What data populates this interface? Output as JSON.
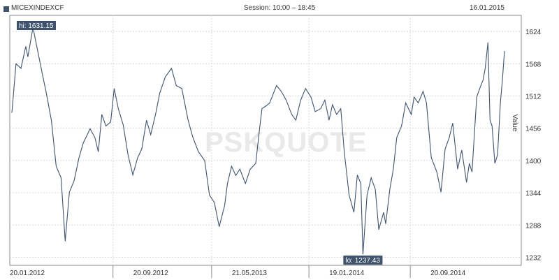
{
  "header": {
    "symbol": "MICEXINDEXCF",
    "session": "Session: 10:00 – 18:45",
    "date": "16.01.2015"
  },
  "watermark": "PSKQUOTE",
  "colors": {
    "line": "#3f536d",
    "grid": "#d8d8d8",
    "badge": "#3f536d"
  },
  "chart_data": {
    "type": "line",
    "ylabel": "Value",
    "yticks": [
      1232,
      1288,
      1344,
      1400,
      1456,
      1512,
      1568,
      1624
    ],
    "ylim": [
      1218,
      1652
    ],
    "xlim": [
      0,
      1
    ],
    "xtick_labels": [
      "20.01.2012",
      "20.09.2012",
      "21.05.2013",
      "19.01.2014",
      "20.09.2014"
    ],
    "xtick_pos": [
      0,
      0.2053,
      0.4055,
      0.603,
      0.8087
    ],
    "grid": true,
    "hi": {
      "label": "hi: 1631.15",
      "value": 1631.15,
      "x": 0.0428
    },
    "lo": {
      "label": "lo: 1237.43",
      "value": 1237.43,
      "x": 0.7126
    },
    "series": [
      {
        "x": [
          0,
          0.0084,
          0.0184,
          0.0282,
          0.0325,
          0.0428,
          0.05,
          0.0607,
          0.0704,
          0.0802,
          0.09,
          0.0998,
          0.1082,
          0.1167,
          0.1264,
          0.1363,
          0.1447,
          0.1587,
          0.1685,
          0.1755,
          0.1825,
          0.1909,
          0.2006,
          0.2077,
          0.216,
          0.2259,
          0.2357,
          0.2455,
          0.2553,
          0.2637,
          0.2734,
          0.2819,
          0.2917,
          0.3001,
          0.3113,
          0.324,
          0.3338,
          0.345,
          0.3577,
          0.3675,
          0.3787,
          0.3913,
          0.4011,
          0.411,
          0.4208,
          0.4319,
          0.4376,
          0.446,
          0.4545,
          0.4628,
          0.4741,
          0.4839,
          0.4951,
          0.5021,
          0.5077,
          0.5162,
          0.5232,
          0.5372,
          0.547,
          0.5568,
          0.5681,
          0.5765,
          0.5863,
          0.5961,
          0.6073,
          0.6157,
          0.6269,
          0.6353,
          0.6438,
          0.6508,
          0.6592,
          0.6677,
          0.6747,
          0.6845,
          0.6943,
          0.7013,
          0.7083,
          0.7126,
          0.721,
          0.7294,
          0.7378,
          0.7448,
          0.7546,
          0.7588,
          0.7672,
          0.7743,
          0.7813,
          0.7911,
          0.7995,
          0.8108,
          0.8164,
          0.8248,
          0.8347,
          0.8416,
          0.8514,
          0.8627,
          0.8711,
          0.8795,
          0.8879,
          0.8949,
          0.9048,
          0.9132,
          0.923,
          0.9287,
          0.9341,
          0.9385,
          0.9436,
          0.9497,
          0.9566,
          0.9608,
          0.9664,
          0.9706,
          0.9748,
          0.9804,
          0.986,
          0.9916,
          0.9958,
          1.0
        ],
        "y": [
          1483,
          1568,
          1560,
          1598,
          1580,
          1631,
          1600,
          1555,
          1515,
          1470,
          1390,
          1370,
          1260,
          1345,
          1365,
          1405,
          1430,
          1455,
          1440,
          1415,
          1480,
          1460,
          1467,
          1525,
          1490,
          1462,
          1410,
          1375,
          1405,
          1420,
          1470,
          1445,
          1480,
          1517,
          1545,
          1560,
          1530,
          1525,
          1470,
          1440,
          1415,
          1400,
          1340,
          1327,
          1285,
          1322,
          1360,
          1390,
          1374,
          1385,
          1360,
          1385,
          1395,
          1450,
          1490,
          1495,
          1500,
          1530,
          1520,
          1505,
          1480,
          1470,
          1505,
          1525,
          1510,
          1485,
          1490,
          1505,
          1470,
          1497,
          1480,
          1490,
          1415,
          1340,
          1310,
          1375,
          1360,
          1237,
          1340,
          1370,
          1350,
          1280,
          1310,
          1290,
          1350,
          1385,
          1440,
          1460,
          1500,
          1480,
          1510,
          1500,
          1520,
          1500,
          1405,
          1380,
          1345,
          1420,
          1440,
          1465,
          1385,
          1418,
          1362,
          1395,
          1380,
          1440,
          1510,
          1525,
          1540,
          1560,
          1605,
          1470,
          1460,
          1395,
          1410,
          1500,
          1540,
          1590
        ]
      }
    ]
  }
}
